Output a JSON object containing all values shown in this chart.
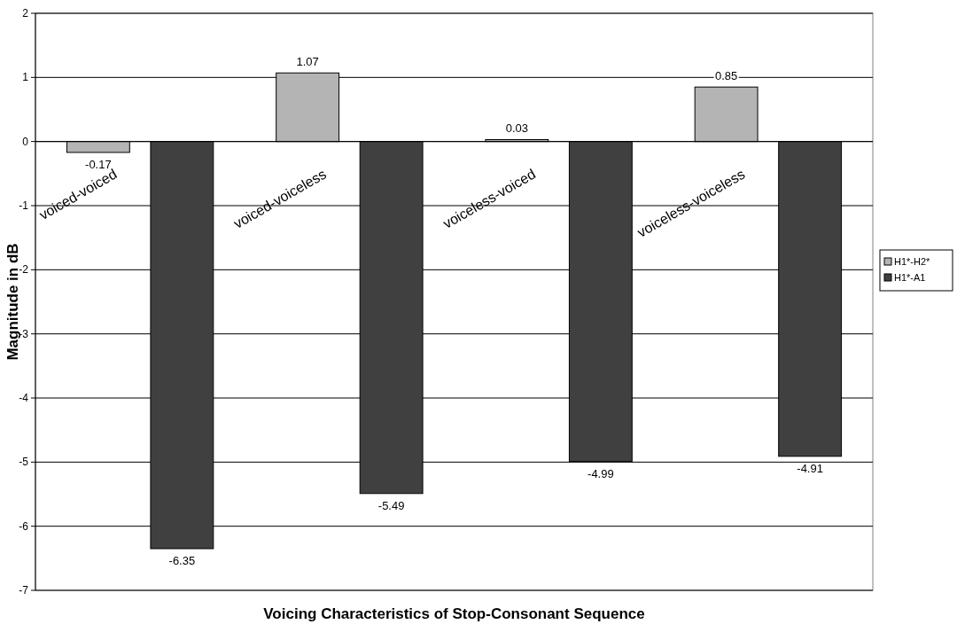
{
  "chart_data": {
    "type": "bar",
    "xlabel": "Voicing Characteristics of Stop-Consonant Sequence",
    "ylabel": "Magnitude in dB",
    "categories": [
      "voiced-voiced",
      "voiced-voiceless",
      "voiceless-voiced",
      "voiceless-voiceless"
    ],
    "series": [
      {
        "name": "H1*-H2*",
        "color": "#b4b4b4",
        "values": [
          -0.17,
          1.07,
          0.03,
          0.85
        ]
      },
      {
        "name": "H1*-A1",
        "color": "#404040",
        "values": [
          -6.35,
          -5.49,
          -4.99,
          -4.91
        ]
      }
    ],
    "ylim": [
      -7,
      2
    ],
    "yticks": [
      -7,
      -6,
      -5,
      -4,
      -3,
      -2,
      -1,
      0,
      1,
      2
    ],
    "grid": "y",
    "legend": "right",
    "data_labels": true
  }
}
